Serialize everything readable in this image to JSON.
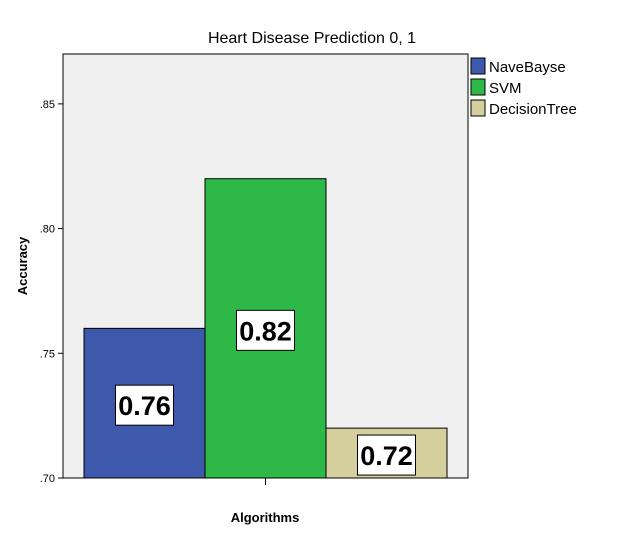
{
  "chart_data": {
    "type": "bar",
    "title": "Heart Disease Prediction 0, 1",
    "xlabel": "Algorithms",
    "ylabel": "Accuracy",
    "ylim": [
      0.7,
      0.87
    ],
    "yticks": [
      0.7,
      0.75,
      0.8,
      0.85
    ],
    "ytick_labels": [
      ".70",
      ".75",
      ".80",
      ".85"
    ],
    "grid": false,
    "legend_position": "top-right",
    "series": [
      {
        "name": "NaveBayse",
        "value": 0.76,
        "label": "0.76",
        "color": "#3e58ac"
      },
      {
        "name": "SVM",
        "value": 0.82,
        "label": "0.82",
        "color": "#2eb848"
      },
      {
        "name": "DecisionTree",
        "value": 0.72,
        "label": "0.72",
        "color": "#d4cf9c"
      }
    ]
  }
}
